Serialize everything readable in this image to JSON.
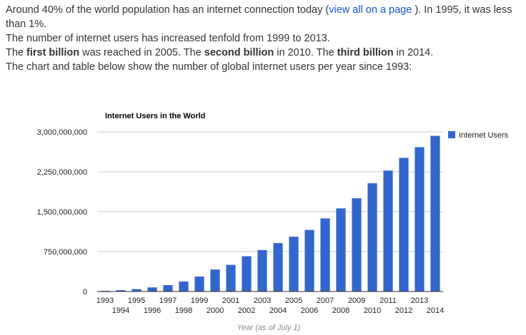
{
  "intro": {
    "line1_pre": "Around 40% of the world population has an internet connection today (",
    "line1_link": "view all on a page",
    "line1_post": " ). In 1995, it was less than 1%.",
    "line2": "The number of internet users has increased tenfold from 1999 to 2013.",
    "line3_a": "The ",
    "line3_b1": "first billion",
    "line3_c": " was reached in 2005. The ",
    "line3_b2": "second billion",
    "line3_d": " in 2010. The ",
    "line3_b3": "third billion",
    "line3_e": " in 2014.",
    "line4": "The chart and table below show the number of global internet users per year since 1993:"
  },
  "colors": {
    "bar": "#3366cc",
    "grid": "#cccccc",
    "link": "#1155cc"
  },
  "chart_data": {
    "type": "bar",
    "title": "Internet Users in the World",
    "xlabel": "Year (as of July 1)",
    "ylabel": "",
    "ylim": [
      0,
      3000000000
    ],
    "yticks": [
      0,
      750000000,
      1500000000,
      2250000000,
      3000000000
    ],
    "ytick_labels": [
      "0",
      "750,000,000",
      "1,500,000,000",
      "2,250,000,000",
      "3,000,000,000"
    ],
    "grid": true,
    "legend": "right",
    "categories": [
      "1993",
      "1994",
      "1995",
      "1996",
      "1997",
      "1998",
      "1999",
      "2000",
      "2001",
      "2002",
      "2003",
      "2004",
      "2005",
      "2006",
      "2007",
      "2008",
      "2009",
      "2010",
      "2011",
      "2012",
      "2013",
      "2014"
    ],
    "series": [
      {
        "name": "Internet Users",
        "values": [
          14161570,
          25454590,
          44838900,
          77433860,
          120758310,
          188023930,
          280866670,
          413425190,
          500609240,
          662663600,
          778555680,
          910060180,
          1029717906,
          1157500065,
          1373226988,
          1562067594,
          1752333178,
          2034259368,
          2272463038,
          2511615523,
          2712239573,
          2925249355
        ]
      }
    ]
  }
}
